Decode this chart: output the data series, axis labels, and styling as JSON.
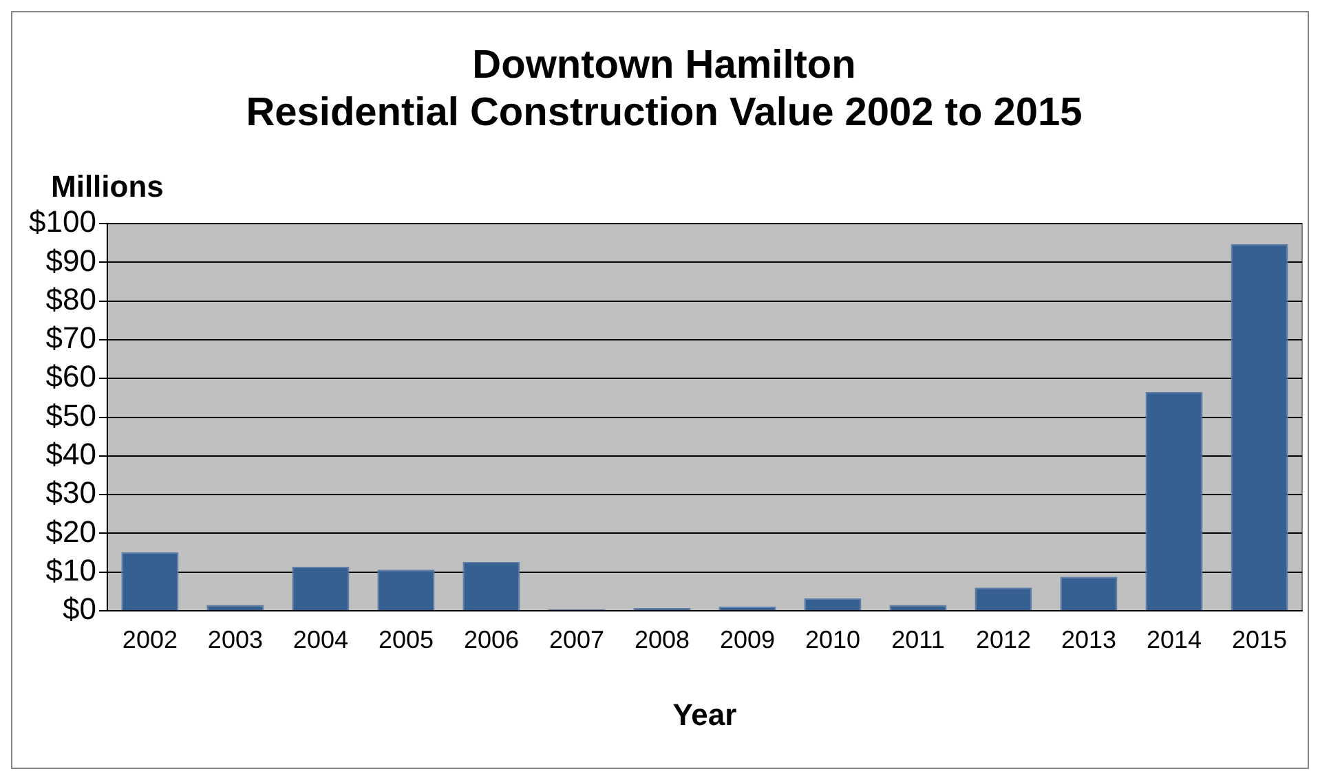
{
  "chart_data": {
    "type": "bar",
    "title": "Downtown Hamilton\nResidential Construction Value 2002 to 2015",
    "ylabel": "Millions",
    "xlabel": "Year",
    "categories": [
      "2002",
      "2003",
      "2004",
      "2005",
      "2006",
      "2007",
      "2008",
      "2009",
      "2010",
      "2011",
      "2012",
      "2013",
      "2014",
      "2015"
    ],
    "values": [
      15.1,
      1.5,
      11.4,
      10.6,
      12.6,
      0.4,
      0.7,
      1.1,
      3.2,
      1.5,
      6.0,
      8.8,
      56.5,
      94.7
    ],
    "color": "#366092",
    "ylim": [
      0,
      100
    ],
    "yticks": [
      {
        "value": 0,
        "label": "$0"
      },
      {
        "value": 10,
        "label": "$10"
      },
      {
        "value": 20,
        "label": "$20"
      },
      {
        "value": 30,
        "label": "$30"
      },
      {
        "value": 40,
        "label": "$40"
      },
      {
        "value": 50,
        "label": "$50"
      },
      {
        "value": 60,
        "label": "$60"
      },
      {
        "value": 70,
        "label": "$70"
      },
      {
        "value": 80,
        "label": "$80"
      },
      {
        "value": 90,
        "label": "$90"
      },
      {
        "value": 100,
        "label": "$100"
      }
    ],
    "grid": "y",
    "legend": false
  }
}
